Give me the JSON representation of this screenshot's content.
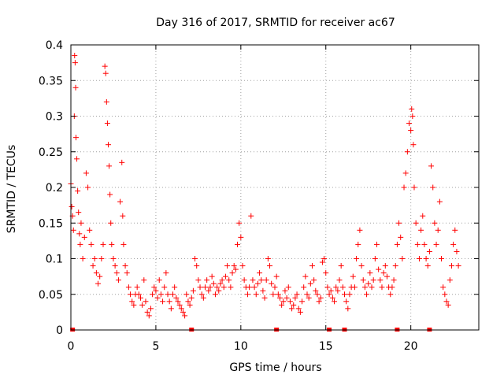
{
  "chart_data": {
    "type": "scatter",
    "title": "Day 316 of 2017, SRMTID for receiver ac67",
    "xlabel": "GPS time / hours",
    "ylabel": "SRMTID / TECUs",
    "xlim": [
      0,
      24
    ],
    "ylim": [
      0,
      0.4
    ],
    "x_ticks": [
      0,
      5,
      10,
      15,
      20
    ],
    "x_tick_labels": [
      "0",
      "5",
      "10",
      "15",
      "20"
    ],
    "y_ticks": [
      0,
      0.05,
      0.1,
      0.15,
      0.2,
      0.25,
      0.3,
      0.35,
      0.4
    ],
    "y_tick_labels": [
      "0",
      "0.05",
      "0.1",
      "0.15",
      "0.2",
      "0.25",
      "0.3",
      "0.35",
      "0.4"
    ],
    "grid": true,
    "marker": "+",
    "color": "#ff0000",
    "series": [
      {
        "name": "SRMTID",
        "points": [
          [
            0.0,
            0.205
          ],
          [
            0.05,
            0.173
          ],
          [
            0.1,
            0.16
          ],
          [
            0.15,
            0.14
          ],
          [
            0.2,
            0.3
          ],
          [
            0.22,
            0.385
          ],
          [
            0.25,
            0.375
          ],
          [
            0.28,
            0.34
          ],
          [
            0.3,
            0.27
          ],
          [
            0.35,
            0.24
          ],
          [
            0.4,
            0.195
          ],
          [
            0.45,
            0.165
          ],
          [
            0.5,
            0.135
          ],
          [
            0.55,
            0.12
          ],
          [
            0.6,
            0.15
          ],
          [
            0.7,
            0.1
          ],
          [
            0.8,
            0.13
          ],
          [
            0.9,
            0.22
          ],
          [
            1.0,
            0.2
          ],
          [
            1.1,
            0.14
          ],
          [
            1.2,
            0.12
          ],
          [
            1.3,
            0.09
          ],
          [
            1.4,
            0.1
          ],
          [
            1.5,
            0.08
          ],
          [
            1.6,
            0.065
          ],
          [
            1.7,
            0.075
          ],
          [
            1.8,
            0.1
          ],
          [
            1.9,
            0.12
          ],
          [
            2.0,
            0.37
          ],
          [
            2.05,
            0.36
          ],
          [
            2.1,
            0.32
          ],
          [
            2.15,
            0.29
          ],
          [
            2.2,
            0.26
          ],
          [
            2.25,
            0.23
          ],
          [
            2.3,
            0.19
          ],
          [
            2.35,
            0.15
          ],
          [
            2.4,
            0.12
          ],
          [
            2.5,
            0.1
          ],
          [
            2.6,
            0.09
          ],
          [
            2.7,
            0.08
          ],
          [
            2.8,
            0.07
          ],
          [
            2.9,
            0.18
          ],
          [
            3.0,
            0.235
          ],
          [
            3.05,
            0.16
          ],
          [
            3.1,
            0.12
          ],
          [
            3.2,
            0.09
          ],
          [
            3.3,
            0.08
          ],
          [
            3.4,
            0.06
          ],
          [
            3.5,
            0.05
          ],
          [
            3.6,
            0.04
          ],
          [
            3.7,
            0.035
          ],
          [
            3.8,
            0.05
          ],
          [
            3.9,
            0.06
          ],
          [
            4.0,
            0.05
          ],
          [
            4.1,
            0.045
          ],
          [
            4.2,
            0.035
          ],
          [
            4.3,
            0.07
          ],
          [
            4.4,
            0.04
          ],
          [
            4.5,
            0.025
          ],
          [
            4.6,
            0.02
          ],
          [
            4.7,
            0.03
          ],
          [
            4.8,
            0.05
          ],
          [
            4.9,
            0.06
          ],
          [
            5.0,
            0.055
          ],
          [
            5.1,
            0.045
          ],
          [
            5.2,
            0.07
          ],
          [
            5.3,
            0.05
          ],
          [
            5.4,
            0.04
          ],
          [
            5.5,
            0.06
          ],
          [
            5.6,
            0.08
          ],
          [
            5.7,
            0.05
          ],
          [
            5.8,
            0.04
          ],
          [
            5.9,
            0.03
          ],
          [
            6.0,
            0.05
          ],
          [
            6.1,
            0.06
          ],
          [
            6.2,
            0.045
          ],
          [
            6.3,
            0.04
          ],
          [
            6.4,
            0.035
          ],
          [
            6.5,
            0.03
          ],
          [
            6.6,
            0.025
          ],
          [
            6.7,
            0.02
          ],
          [
            6.8,
            0.05
          ],
          [
            6.9,
            0.04
          ],
          [
            7.0,
            0.035
          ],
          [
            7.1,
            0.045
          ],
          [
            7.2,
            0.055
          ],
          [
            7.3,
            0.1
          ],
          [
            7.4,
            0.09
          ],
          [
            7.5,
            0.07
          ],
          [
            7.6,
            0.06
          ],
          [
            7.7,
            0.05
          ],
          [
            7.8,
            0.045
          ],
          [
            7.9,
            0.06
          ],
          [
            8.0,
            0.07
          ],
          [
            8.1,
            0.055
          ],
          [
            8.2,
            0.06
          ],
          [
            8.3,
            0.075
          ],
          [
            8.4,
            0.065
          ],
          [
            8.5,
            0.05
          ],
          [
            8.6,
            0.06
          ],
          [
            8.7,
            0.055
          ],
          [
            8.8,
            0.065
          ],
          [
            8.9,
            0.07
          ],
          [
            9.0,
            0.06
          ],
          [
            9.1,
            0.075
          ],
          [
            9.2,
            0.09
          ],
          [
            9.3,
            0.07
          ],
          [
            9.4,
            0.06
          ],
          [
            9.5,
            0.08
          ],
          [
            9.6,
            0.09
          ],
          [
            9.7,
            0.085
          ],
          [
            9.8,
            0.12
          ],
          [
            9.9,
            0.15
          ],
          [
            10.0,
            0.13
          ],
          [
            10.1,
            0.09
          ],
          [
            10.2,
            0.07
          ],
          [
            10.3,
            0.06
          ],
          [
            10.4,
            0.05
          ],
          [
            10.5,
            0.06
          ],
          [
            10.6,
            0.16
          ],
          [
            10.7,
            0.07
          ],
          [
            10.8,
            0.06
          ],
          [
            10.9,
            0.05
          ],
          [
            11.0,
            0.065
          ],
          [
            11.1,
            0.08
          ],
          [
            11.2,
            0.07
          ],
          [
            11.3,
            0.055
          ],
          [
            11.4,
            0.045
          ],
          [
            11.5,
            0.07
          ],
          [
            11.6,
            0.1
          ],
          [
            11.7,
            0.09
          ],
          [
            11.8,
            0.065
          ],
          [
            11.9,
            0.05
          ],
          [
            12.0,
            0.06
          ],
          [
            12.1,
            0.075
          ],
          [
            12.2,
            0.05
          ],
          [
            12.3,
            0.045
          ],
          [
            12.4,
            0.035
          ],
          [
            12.5,
            0.04
          ],
          [
            12.6,
            0.055
          ],
          [
            12.7,
            0.045
          ],
          [
            12.8,
            0.06
          ],
          [
            12.9,
            0.04
          ],
          [
            13.0,
            0.03
          ],
          [
            13.1,
            0.035
          ],
          [
            13.2,
            0.045
          ],
          [
            13.3,
            0.05
          ],
          [
            13.4,
            0.03
          ],
          [
            13.5,
            0.025
          ],
          [
            13.6,
            0.04
          ],
          [
            13.7,
            0.06
          ],
          [
            13.8,
            0.075
          ],
          [
            13.9,
            0.05
          ],
          [
            14.0,
            0.045
          ],
          [
            14.1,
            0.065
          ],
          [
            14.2,
            0.09
          ],
          [
            14.3,
            0.07
          ],
          [
            14.4,
            0.055
          ],
          [
            14.5,
            0.05
          ],
          [
            14.6,
            0.04
          ],
          [
            14.7,
            0.045
          ],
          [
            14.8,
            0.095
          ],
          [
            14.9,
            0.1
          ],
          [
            15.0,
            0.08
          ],
          [
            15.1,
            0.06
          ],
          [
            15.2,
            0.05
          ],
          [
            15.3,
            0.055
          ],
          [
            15.4,
            0.045
          ],
          [
            15.5,
            0.04
          ],
          [
            15.6,
            0.06
          ],
          [
            15.7,
            0.055
          ],
          [
            15.8,
            0.07
          ],
          [
            15.9,
            0.09
          ],
          [
            16.0,
            0.06
          ],
          [
            16.1,
            0.05
          ],
          [
            16.2,
            0.04
          ],
          [
            16.3,
            0.03
          ],
          [
            16.4,
            0.05
          ],
          [
            16.5,
            0.06
          ],
          [
            16.6,
            0.075
          ],
          [
            16.7,
            0.06
          ],
          [
            16.8,
            0.1
          ],
          [
            16.9,
            0.12
          ],
          [
            17.0,
            0.14
          ],
          [
            17.1,
            0.09
          ],
          [
            17.2,
            0.07
          ],
          [
            17.3,
            0.06
          ],
          [
            17.4,
            0.05
          ],
          [
            17.5,
            0.065
          ],
          [
            17.6,
            0.08
          ],
          [
            17.7,
            0.06
          ],
          [
            17.8,
            0.07
          ],
          [
            17.9,
            0.1
          ],
          [
            18.0,
            0.12
          ],
          [
            18.1,
            0.085
          ],
          [
            18.2,
            0.07
          ],
          [
            18.3,
            0.06
          ],
          [
            18.4,
            0.08
          ],
          [
            18.5,
            0.09
          ],
          [
            18.6,
            0.075
          ],
          [
            18.7,
            0.06
          ],
          [
            18.8,
            0.05
          ],
          [
            18.9,
            0.06
          ],
          [
            19.0,
            0.07
          ],
          [
            19.1,
            0.09
          ],
          [
            19.2,
            0.12
          ],
          [
            19.3,
            0.15
          ],
          [
            19.4,
            0.13
          ],
          [
            19.5,
            0.1
          ],
          [
            19.6,
            0.2
          ],
          [
            19.7,
            0.22
          ],
          [
            19.8,
            0.25
          ],
          [
            19.9,
            0.29
          ],
          [
            20.0,
            0.28
          ],
          [
            20.05,
            0.31
          ],
          [
            20.1,
            0.3
          ],
          [
            20.15,
            0.26
          ],
          [
            20.2,
            0.2
          ],
          [
            20.3,
            0.15
          ],
          [
            20.4,
            0.12
          ],
          [
            20.5,
            0.1
          ],
          [
            20.6,
            0.14
          ],
          [
            20.7,
            0.16
          ],
          [
            20.8,
            0.12
          ],
          [
            20.9,
            0.1
          ],
          [
            21.0,
            0.09
          ],
          [
            21.1,
            0.11
          ],
          [
            21.2,
            0.23
          ],
          [
            21.3,
            0.2
          ],
          [
            21.4,
            0.15
          ],
          [
            21.5,
            0.12
          ],
          [
            21.6,
            0.14
          ],
          [
            21.7,
            0.18
          ],
          [
            21.8,
            0.1
          ],
          [
            21.9,
            0.06
          ],
          [
            22.0,
            0.05
          ],
          [
            22.1,
            0.04
          ],
          [
            22.2,
            0.035
          ],
          [
            22.3,
            0.07
          ],
          [
            22.4,
            0.09
          ],
          [
            22.5,
            0.12
          ],
          [
            22.6,
            0.14
          ],
          [
            22.7,
            0.11
          ],
          [
            22.8,
            0.09
          ]
        ]
      }
    ],
    "gap_markers_x": [
      0.1,
      7.1,
      12.1,
      15.2,
      16.1,
      19.2,
      21.1
    ]
  }
}
